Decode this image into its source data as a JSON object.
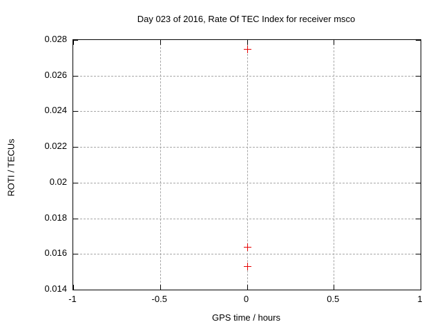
{
  "chart_data": {
    "type": "scatter",
    "title": "Day 023 of 2016, Rate Of TEC Index for receiver msco",
    "xlabel": "GPS time / hours",
    "ylabel": "ROTI / TECUs",
    "xlim": [
      -1,
      1
    ],
    "ylim": [
      0.014,
      0.028
    ],
    "xticks": [
      -1,
      -0.5,
      0,
      0.5,
      1
    ],
    "xtick_labels": [
      "-1",
      "-0.5",
      "0",
      "0.5",
      "1"
    ],
    "yticks": [
      0.014,
      0.016,
      0.018,
      0.02,
      0.022,
      0.024,
      0.026,
      0.028
    ],
    "ytick_labels": [
      "0.014",
      "0.016",
      "0.018",
      "0.02",
      "0.022",
      "0.024",
      "0.026",
      "0.028"
    ],
    "grid": true,
    "legend": false,
    "series": [
      {
        "name": "ROTI",
        "marker": "plus",
        "color": "#e60000",
        "points": [
          {
            "x": 0,
            "y": 0.0275
          },
          {
            "x": 0,
            "y": 0.0164
          },
          {
            "x": 0,
            "y": 0.0153
          }
        ]
      }
    ]
  },
  "colors": {
    "background": "#ffffff",
    "plot_border": "#000000",
    "grid": "#a6a6a6",
    "text": "#000000",
    "marker": "#e60000"
  }
}
